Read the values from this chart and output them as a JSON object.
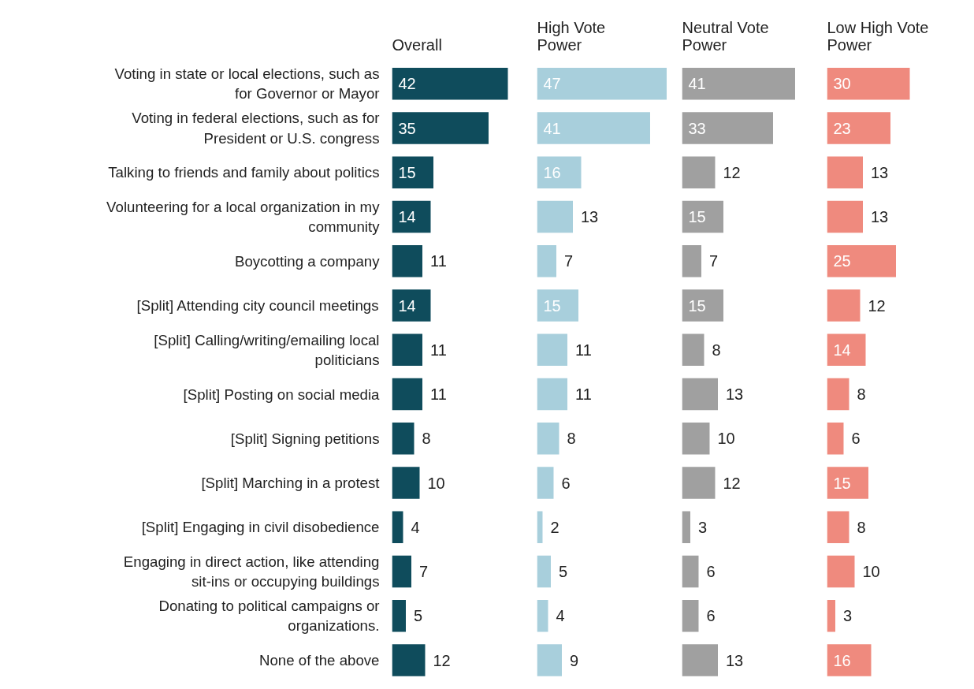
{
  "chart_data": [
    {
      "type": "bar",
      "orientation": "horizontal",
      "title": "Overall",
      "color": "#0f4c5c",
      "data_labels": true,
      "tick_labels": "y",
      "grid": false,
      "categories": [
        "Voting in state or local elections, such as for Governor or Mayor",
        "Voting in federal elections, such as for President or U.S. congress",
        "Talking to friends and family about politics",
        "Volunteering for a local organization in my community",
        "Boycotting a company",
        "[Split] Attending city council meetings",
        "[Split] Calling/writing/emailing local politicians",
        "[Split] Posting on social media",
        "[Split] Signing petitions",
        "[Split] Marching in a protest",
        "[Split] Engaging in civil disobedience",
        "Engaging in direct action, like attending sit-ins or occupying buildings",
        "Donating to political campaigns or organizations.",
        "None of the above"
      ],
      "values": [
        42,
        35,
        15,
        14,
        11,
        14,
        11,
        11,
        8,
        10,
        4,
        7,
        5,
        12
      ]
    },
    {
      "type": "bar",
      "orientation": "horizontal",
      "title": "High Vote Power",
      "color": "#a8cfdc",
      "data_labels": true,
      "tick_labels": false,
      "grid": false,
      "categories": [
        "Voting in state or local elections, such as for Governor or Mayor",
        "Voting in federal elections, such as for President or U.S. congress",
        "Talking to friends and family about politics",
        "Volunteering for a local organization in my community",
        "Boycotting a company",
        "[Split] Attending city council meetings",
        "[Split] Calling/writing/emailing local politicians",
        "[Split] Posting on social media",
        "[Split] Signing petitions",
        "[Split] Marching in a protest",
        "[Split] Engaging in civil disobedience",
        "Engaging in direct action, like attending sit-ins or occupying buildings",
        "Donating to political campaigns or organizations.",
        "None of the above"
      ],
      "values": [
        47,
        41,
        16,
        13,
        7,
        15,
        11,
        11,
        8,
        6,
        2,
        5,
        4,
        9
      ]
    },
    {
      "type": "bar",
      "orientation": "horizontal",
      "title": "Neutral Vote Power",
      "color": "#a0a0a0",
      "data_labels": true,
      "tick_labels": false,
      "grid": false,
      "categories": [
        "Voting in state or local elections, such as for Governor or Mayor",
        "Voting in federal elections, such as for President or U.S. congress",
        "Talking to friends and family about politics",
        "Volunteering for a local organization in my community",
        "Boycotting a company",
        "[Split] Attending city council meetings",
        "[Split] Calling/writing/emailing local politicians",
        "[Split] Posting on social media",
        "[Split] Signing petitions",
        "[Split] Marching in a protest",
        "[Split] Engaging in civil disobedience",
        "Engaging in direct action, like attending sit-ins or occupying buildings",
        "Donating to political campaigns or organizations.",
        "None of the above"
      ],
      "values": [
        41,
        33,
        12,
        15,
        7,
        15,
        8,
        13,
        10,
        12,
        3,
        6,
        6,
        13
      ]
    },
    {
      "type": "bar",
      "orientation": "horizontal",
      "title": "Low High Vote Power",
      "color": "#ef8a7e",
      "data_labels": true,
      "tick_labels": false,
      "grid": false,
      "categories": [
        "Voting in state or local elections, such as for Governor or Mayor",
        "Voting in federal elections, such as for President or U.S. congress",
        "Talking to friends and family about politics",
        "Volunteering for a local organization in my community",
        "Boycotting a company",
        "[Split] Attending city council meetings",
        "[Split] Calling/writing/emailing local politicians",
        "[Split] Posting on social media",
        "[Split] Signing petitions",
        "[Split] Marching in a protest",
        "[Split] Engaging in civil disobedience",
        "Engaging in direct action, like attending sit-ins or occupying buildings",
        "Donating to political campaigns or organizations.",
        "None of the above"
      ],
      "values": [
        30,
        23,
        13,
        13,
        25,
        12,
        14,
        8,
        6,
        15,
        8,
        10,
        3,
        16
      ]
    }
  ]
}
